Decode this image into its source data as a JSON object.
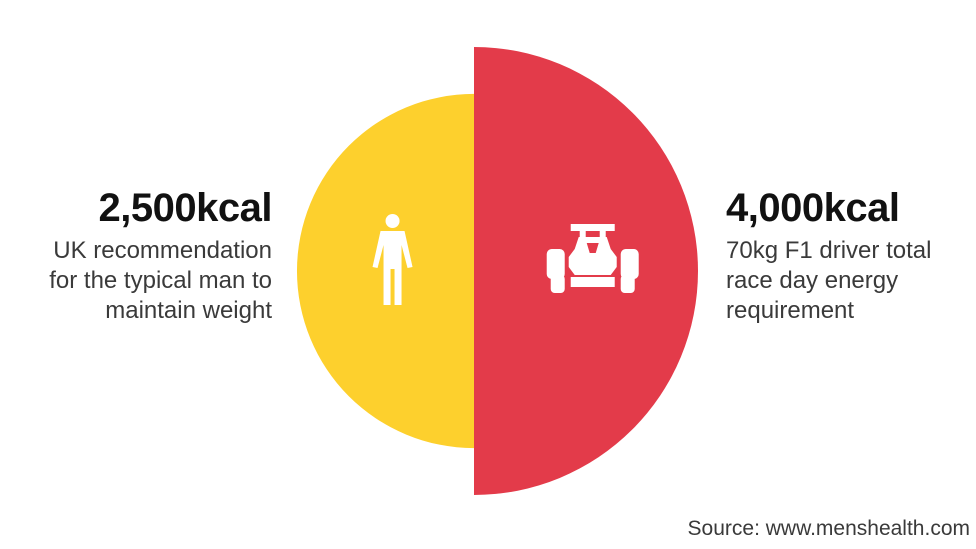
{
  "chart_data": {
    "type": "pie",
    "comparison": "semicircle-area",
    "unit": "kcal",
    "slices": [
      {
        "value": 2500,
        "value_label": "2,500kcal",
        "description_lines": [
          "UK recommendation",
          "for the typical man to",
          "maintain weight"
        ],
        "color": "#fdd02d",
        "icon": "person-icon"
      },
      {
        "value": 4000,
        "value_label": "4,000kcal",
        "description_lines": [
          "70kg F1 driver total",
          "race day energy",
          "requirement"
        ],
        "color": "#e33b4a",
        "icon": "f1-car-icon"
      }
    ]
  },
  "source": "Source: www.menshealth.com"
}
